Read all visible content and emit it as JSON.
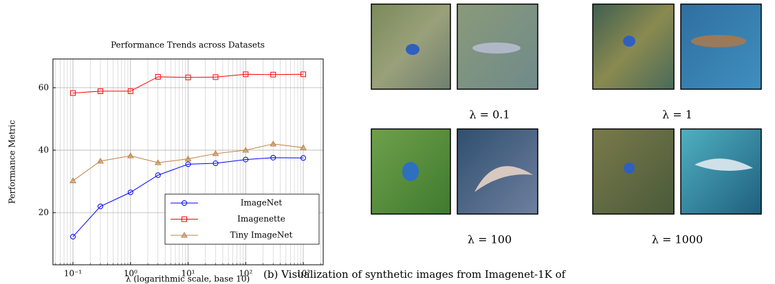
{
  "chart_data": {
    "type": "line",
    "title": "Performance Trends across Datasets",
    "xlabel": "λ (logarithmic scale, base 10)",
    "ylabel": "Performance Metric",
    "x": [
      0.1,
      0.3,
      1,
      3,
      10,
      30,
      100,
      300,
      1000
    ],
    "series": [
      {
        "name": "ImageNet",
        "color": "#0000ff",
        "marker": "circle",
        "values": [
          12.3,
          22,
          26.5,
          32,
          35.5,
          35.8,
          37,
          37.6,
          37.5
        ]
      },
      {
        "name": "Imagenette",
        "color": "#ff0000",
        "marker": "square",
        "values": [
          58.3,
          58.9,
          58.9,
          63.5,
          63.3,
          63.4,
          64.3,
          64.2,
          64.3
        ]
      },
      {
        "name": "Tiny ImageNet",
        "color": "#bf8040",
        "marker": "triangle",
        "values": [
          30.2,
          36.5,
          38.2,
          36,
          37.2,
          38.9,
          40,
          42,
          40.8
        ]
      }
    ],
    "xscale": "log",
    "xlim": [
      0.045,
      2218
    ],
    "ylim": [
      3.3,
      69.2
    ],
    "xticks": [
      {
        "value": 0.1,
        "label": "10⁻¹"
      },
      {
        "value": 1,
        "label": "10⁰"
      },
      {
        "value": 10,
        "label": "10¹"
      },
      {
        "value": 100,
        "label": "10²"
      },
      {
        "value": 1000,
        "label": "10³"
      }
    ],
    "yticks": [
      20,
      40,
      60
    ],
    "grid": true,
    "minor_grid": true,
    "legend": "lower right"
  },
  "images": {
    "labels": [
      "λ = 0.1",
      "λ = 1",
      "λ = 100",
      "λ = 1000"
    ]
  },
  "caption": "(b) Visualization of synthetic images from Imagenet-1K of"
}
